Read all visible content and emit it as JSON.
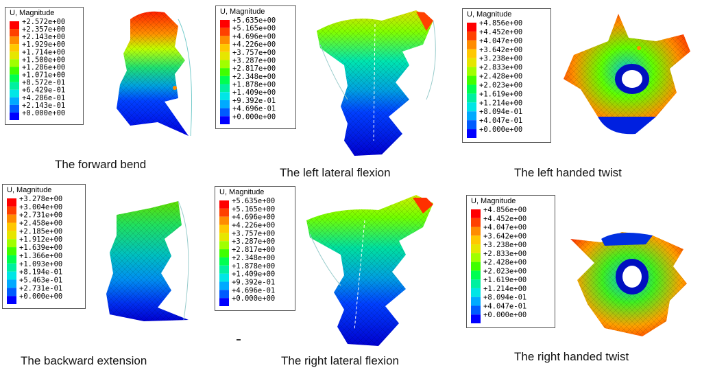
{
  "colors": [
    "#0000ff",
    "#005bff",
    "#00aaff",
    "#00e6e6",
    "#00f0a0",
    "#00ff50",
    "#40ff00",
    "#a0ff00",
    "#e6e600",
    "#ffc800",
    "#ff8c00",
    "#ff4000",
    "#ff0000"
  ],
  "panels": [
    {
      "title": "U, Magnitude",
      "caption": "The forward bend",
      "values": [
        "+2.572e+00",
        "+2.357e+00",
        "+2.143e+00",
        "+1.929e+00",
        "+1.714e+00",
        "+1.500e+00",
        "+1.286e+00",
        "+1.071e+00",
        "+8.572e-01",
        "+6.429e-01",
        "+4.286e-01",
        "+2.143e-01",
        "+0.000e+00"
      ]
    },
    {
      "title": "U, Magnitude",
      "caption": "The left lateral flexion",
      "values": [
        "+5.635e+00",
        "+5.165e+00",
        "+4.696e+00",
        "+4.226e+00",
        "+3.757e+00",
        "+3.287e+00",
        "+2.817e+00",
        "+2.348e+00",
        "+1.878e+00",
        "+1.409e+00",
        "+9.392e-01",
        "+4.696e-01",
        "+0.000e+00"
      ]
    },
    {
      "title": "U, Magnitude",
      "caption": "The left handed twist",
      "values": [
        "+4.856e+00",
        "+4.452e+00",
        "+4.047e+00",
        "+3.642e+00",
        "+3.238e+00",
        "+2.833e+00",
        "+2.428e+00",
        "+2.023e+00",
        "+1.619e+00",
        "+1.214e+00",
        "+8.094e-01",
        "+4.047e-01",
        "+0.000e+00"
      ]
    },
    {
      "title": "U, Magnitude",
      "caption": "The backward extension",
      "values": [
        "+3.278e+00",
        "+3.004e+00",
        "+2.731e+00",
        "+2.458e+00",
        "+2.185e+00",
        "+1.912e+00",
        "+1.639e+00",
        "+1.366e+00",
        "+1.093e+00",
        "+8.194e-01",
        "+5.463e-01",
        "+2.731e-01",
        "+0.000e+00"
      ]
    },
    {
      "title": "U, Magnitude",
      "caption": "The right lateral flexion",
      "values": [
        "+5.635e+00",
        "+5.165e+00",
        "+4.696e+00",
        "+4.226e+00",
        "+3.757e+00",
        "+3.287e+00",
        "+2.817e+00",
        "+2.348e+00",
        "+1.878e+00",
        "+1.409e+00",
        "+9.392e-01",
        "+4.696e-01",
        "+0.000e+00"
      ]
    },
    {
      "title": "U, Magnitude",
      "caption": "The right handed twist",
      "values": [
        "+4.856e+00",
        "+4.452e+00",
        "+4.047e+00",
        "+3.642e+00",
        "+3.238e+00",
        "+2.833e+00",
        "+2.428e+00",
        "+2.023e+00",
        "+1.619e+00",
        "+1.214e+00",
        "+8.094e-01",
        "+4.047e-01",
        "+0.000e+00"
      ]
    }
  ]
}
